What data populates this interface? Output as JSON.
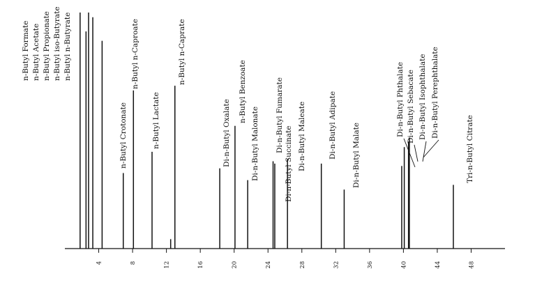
{
  "chart_data": {
    "type": "line",
    "title": "",
    "xlabel": "",
    "ylabel": "",
    "xlim": [
      0,
      52
    ],
    "ylim": [
      0,
      100
    ],
    "grid": false,
    "x_ticks": [
      4,
      8,
      12,
      16,
      20,
      24,
      28,
      32,
      36,
      40,
      44,
      48
    ],
    "peaks": [
      {
        "x": 1.8,
        "y": 100,
        "label": "n-Butyl Formate"
      },
      {
        "x": 2.5,
        "y": 92,
        "label": "n-Butyl Acetate"
      },
      {
        "x": 2.8,
        "y": 100,
        "label": "n-Butyl Propionate"
      },
      {
        "x": 3.3,
        "y": 98,
        "label": "n-Butyl iso-Butyrate"
      },
      {
        "x": 4.4,
        "y": 88,
        "label": "n-Butyl n-Butyrate"
      },
      {
        "x": 6.9,
        "y": 32,
        "label": "n-Butyl Crotonate"
      },
      {
        "x": 8.1,
        "y": 67,
        "label": "n-Butyl n-Caproate"
      },
      {
        "x": 10.3,
        "y": 41,
        "label": "n-Butyl Lactate"
      },
      {
        "x": 12.5,
        "y": 4,
        "label": ""
      },
      {
        "x": 13.0,
        "y": 69,
        "label": "n-Butyl n-Caprate"
      },
      {
        "x": 18.3,
        "y": 34,
        "label": "Di-n-Butyl Oxalate"
      },
      {
        "x": 20.1,
        "y": 52,
        "label": "n-Butyl Benzoate"
      },
      {
        "x": 21.6,
        "y": 29,
        "label": "Di-n-Butyl Malonate"
      },
      {
        "x": 24.6,
        "y": 37,
        "label": "Di-n-Butyl Fumarate"
      },
      {
        "x": 24.8,
        "y": 36,
        "label": "Di-n-Butyl Succinate"
      },
      {
        "x": 26.3,
        "y": 38,
        "label": "Di-n-Butyl Maleate"
      },
      {
        "x": 30.3,
        "y": 36,
        "label": "Di-n-Butyl Adipate"
      },
      {
        "x": 33.0,
        "y": 25,
        "label": "Di-n-Butyl Malate"
      },
      {
        "x": 39.8,
        "y": 35,
        "label": "Di-n-Butyl Phthalate"
      },
      {
        "x": 40.1,
        "y": 43,
        "label": "Di-n-Butyl Sebacate"
      },
      {
        "x": 40.6,
        "y": 45,
        "label": "Di-n-Butyl Isophthalate"
      },
      {
        "x": 40.7,
        "y": 47,
        "label": "Di-n-Butyl Perephthalate"
      },
      {
        "x": 45.9,
        "y": 27,
        "label": "Tri-n-Butyl Citrate"
      }
    ]
  }
}
